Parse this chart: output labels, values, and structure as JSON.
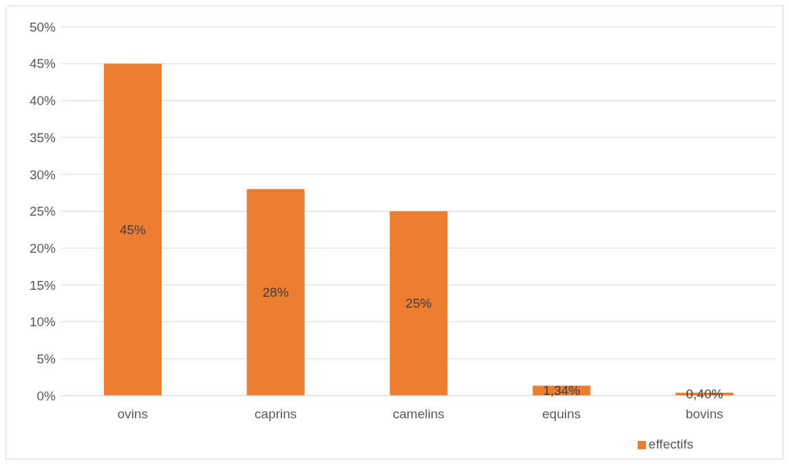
{
  "chart_data": {
    "type": "bar",
    "categories": [
      "ovins",
      "caprins",
      "camelins",
      "equins",
      "bovins"
    ],
    "series": [
      {
        "name": "effectifs",
        "color": "#ed7d31",
        "values": [
          45,
          28,
          25,
          1.34,
          0.4
        ],
        "value_labels": [
          "45%",
          "28%",
          "25%",
          "1,34%",
          "0,40%"
        ]
      }
    ],
    "ylim": [
      0,
      50
    ],
    "yticks": [
      {
        "value": 0,
        "label": "0%"
      },
      {
        "value": 5,
        "label": "5%"
      },
      {
        "value": 10,
        "label": "10%"
      },
      {
        "value": 15,
        "label": "15%"
      },
      {
        "value": 20,
        "label": "20%"
      },
      {
        "value": 25,
        "label": "25%"
      },
      {
        "value": 30,
        "label": "30%"
      },
      {
        "value": 35,
        "label": "35%"
      },
      {
        "value": 40,
        "label": "40%"
      },
      {
        "value": 45,
        "label": "45%"
      },
      {
        "value": 50,
        "label": "50%"
      }
    ],
    "grid": "y",
    "legend": "bottom right"
  }
}
